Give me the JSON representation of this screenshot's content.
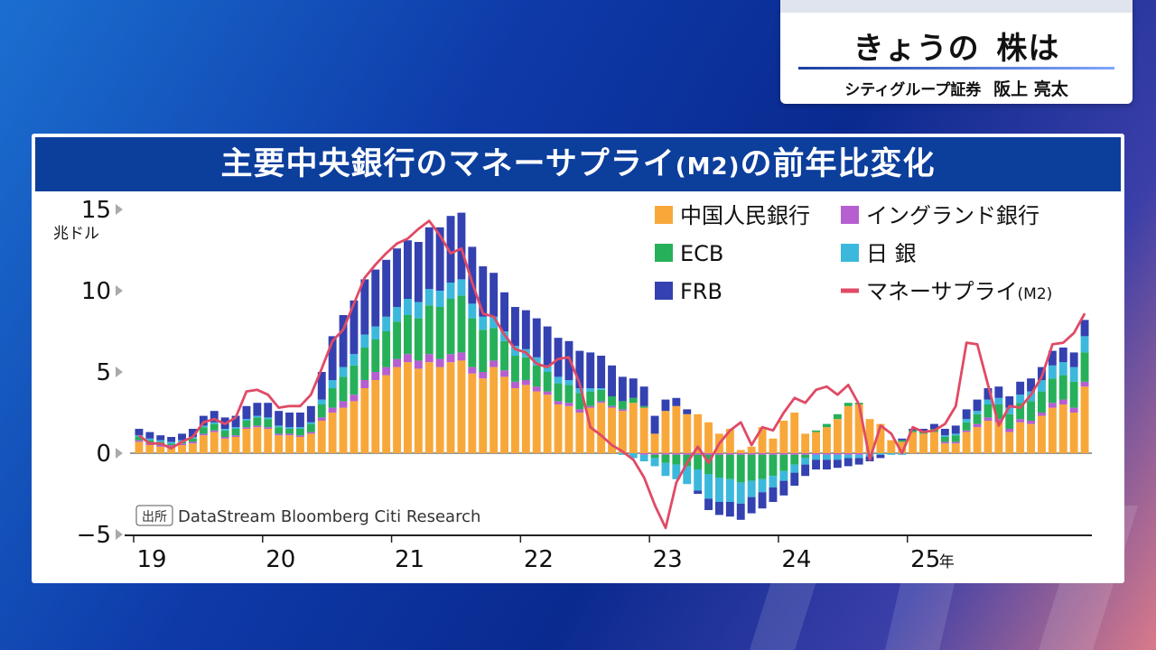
{
  "header": {
    "title_a": "きょうの",
    "title_b": "株は",
    "company": "シティグループ証券",
    "person": "阪上 亮太"
  },
  "chart_title": {
    "main": "主要中央銀行のマネーサプライ",
    "m2": "(M2)",
    "tail": "の前年比変化"
  },
  "colors": {
    "pboc": "#f8a83a",
    "boe": "#b65fd0",
    "ecb": "#26b05a",
    "boj": "#3cb8dc",
    "frb": "#3441b0",
    "m2": "#e04a66"
  },
  "chart_data": {
    "type": "bar",
    "stacked": true,
    "title": "主要中央銀行のマネーサプライ(M2)の前年比変化",
    "ylabel": "兆ドル",
    "ylim": [
      -5,
      15
    ],
    "yticks": [
      15,
      10,
      5,
      0,
      -5
    ],
    "x_start": 2019.0,
    "x_step": 0.0833333,
    "xticks": [
      {
        "label": "19",
        "x": 2019
      },
      {
        "label": "20",
        "x": 2020
      },
      {
        "label": "21",
        "x": 2021
      },
      {
        "label": "22",
        "x": 2022
      },
      {
        "label": "23",
        "x": 2023
      },
      {
        "label": "24",
        "x": 2024
      },
      {
        "label": "25",
        "x": 2025
      }
    ],
    "x_unit": "年",
    "source_label": "出所",
    "source": "DataStream Bloomberg Citi Research",
    "series": [
      {
        "name": "中国人民銀行",
        "key": "pboc",
        "values": [
          0.7,
          0.5,
          0.4,
          0.4,
          0.5,
          0.6,
          1.1,
          1.3,
          0.9,
          1.0,
          1.5,
          1.6,
          1.5,
          1.1,
          1.1,
          1.0,
          1.2,
          2.0,
          2.5,
          2.8,
          3.2,
          4.0,
          4.5,
          4.8,
          5.3,
          5.6,
          5.2,
          5.6,
          5.3,
          5.6,
          5.7,
          4.9,
          4.6,
          5.3,
          4.7,
          4.0,
          4.2,
          3.8,
          3.6,
          3.0,
          2.9,
          2.5,
          2.8,
          3.1,
          2.8,
          2.6,
          3.1,
          2.8,
          1.2,
          2.6,
          2.9,
          2.4,
          2.4,
          1.9,
          1.2,
          1.5,
          0.2,
          0.4,
          1.6,
          0.9,
          2.0,
          2.5,
          1.2,
          1.3,
          1.6,
          2.1,
          2.9,
          3.0,
          2.1,
          1.8,
          0.8,
          0.7,
          1.3,
          1.2,
          1.3,
          0.6,
          0.6,
          1.3,
          1.6,
          2.0,
          1.9,
          1.3,
          1.9,
          1.8,
          2.3,
          2.8,
          3.0,
          2.5,
          4.1
        ]
      },
      {
        "name": "イングランド銀行",
        "key": "boe",
        "values": [
          0.1,
          0.1,
          0.1,
          0.1,
          0.1,
          0.1,
          0.1,
          0.1,
          0.1,
          0.1,
          0.1,
          0.1,
          0.1,
          0.1,
          0.1,
          0.1,
          0.1,
          0.2,
          0.3,
          0.4,
          0.4,
          0.5,
          0.5,
          0.5,
          0.5,
          0.5,
          0.5,
          0.5,
          0.5,
          0.5,
          0.5,
          0.4,
          0.4,
          0.4,
          0.4,
          0.4,
          0.3,
          0.3,
          0.2,
          0.2,
          0.2,
          0.2,
          0.1,
          0.1,
          0.1,
          0.1,
          0.0,
          -0.1,
          -0.1,
          -0.1,
          -0.1,
          -0.1,
          -0.1,
          -0.1,
          -0.1,
          -0.1,
          -0.1,
          -0.1,
          -0.1,
          -0.1,
          -0.1,
          -0.1,
          -0.1,
          -0.1,
          -0.1,
          -0.1,
          -0.1,
          -0.1,
          0.0,
          0.0,
          0.0,
          0.0,
          0.0,
          0.0,
          0.0,
          0.1,
          0.1,
          0.1,
          0.2,
          0.2,
          0.2,
          0.2,
          0.2,
          0.2,
          0.2,
          0.3,
          0.3,
          0.3,
          0.3
        ]
      },
      {
        "name": "ECB",
        "key": "ecb",
        "values": [
          0.2,
          0.2,
          0.2,
          0.1,
          0.1,
          0.2,
          0.4,
          0.4,
          0.4,
          0.4,
          0.4,
          0.5,
          0.5,
          0.4,
          0.3,
          0.4,
          0.5,
          0.8,
          1.2,
          1.5,
          1.8,
          2.0,
          2.0,
          2.2,
          2.3,
          2.4,
          2.6,
          3.0,
          3.2,
          3.4,
          3.5,
          3.0,
          2.6,
          2.0,
          1.8,
          1.6,
          1.4,
          1.3,
          1.2,
          1.1,
          1.1,
          1.0,
          0.9,
          0.7,
          0.6,
          0.5,
          0.3,
          0.1,
          -0.2,
          -0.5,
          -0.6,
          -0.7,
          -0.9,
          -1.2,
          -1.4,
          -1.5,
          -1.7,
          -1.6,
          -1.5,
          -1.3,
          -1.0,
          -0.6,
          -0.2,
          0.1,
          0.2,
          0.3,
          0.2,
          0.1,
          0.0,
          0.0,
          0.0,
          0.1,
          0.1,
          0.1,
          0.2,
          0.3,
          0.4,
          0.5,
          0.6,
          0.8,
          0.9,
          0.9,
          1.0,
          1.2,
          1.3,
          1.5,
          1.5,
          1.6,
          1.8
        ]
      },
      {
        "name": "日 銀",
        "key": "boj",
        "values": [
          0.1,
          0.1,
          0.1,
          0.1,
          0.1,
          0.1,
          0.1,
          0.1,
          0.1,
          0.1,
          0.1,
          0.1,
          0.1,
          0.1,
          0.1,
          0.1,
          0.1,
          0.3,
          0.5,
          0.6,
          0.7,
          0.8,
          0.8,
          0.9,
          0.9,
          1.0,
          1.0,
          1.0,
          1.0,
          1.0,
          1.0,
          0.9,
          0.8,
          0.7,
          0.6,
          0.6,
          0.5,
          0.5,
          0.4,
          0.4,
          0.3,
          0.3,
          0.2,
          0.1,
          0.0,
          -0.1,
          -0.3,
          -0.4,
          -0.5,
          -0.8,
          -0.9,
          -1.1,
          -1.3,
          -1.5,
          -1.5,
          -1.4,
          -1.3,
          -1.0,
          -0.8,
          -0.7,
          -0.6,
          -0.5,
          -0.4,
          -0.3,
          -0.3,
          -0.3,
          -0.2,
          -0.2,
          -0.2,
          -0.1,
          -0.1,
          -0.1,
          0.0,
          0.0,
          0.0,
          0.1,
          0.1,
          0.2,
          0.2,
          0.3,
          0.4,
          0.4,
          0.5,
          0.6,
          0.7,
          0.8,
          0.8,
          0.9,
          1.0
        ]
      },
      {
        "name": "FRB",
        "key": "frb",
        "values": [
          0.4,
          0.4,
          0.3,
          0.3,
          0.4,
          0.5,
          0.6,
          0.7,
          0.7,
          0.7,
          0.8,
          0.8,
          0.9,
          0.9,
          0.9,
          0.9,
          1.0,
          1.7,
          2.7,
          3.2,
          3.3,
          3.4,
          3.5,
          3.5,
          3.6,
          3.6,
          3.7,
          3.8,
          3.9,
          4.1,
          4.1,
          3.5,
          3.1,
          2.7,
          2.4,
          2.4,
          2.4,
          2.4,
          2.4,
          2.4,
          2.4,
          2.3,
          2.2,
          2.0,
          1.9,
          1.5,
          1.2,
          1.2,
          1.1,
          0.7,
          0.5,
          0.3,
          -0.2,
          -0.7,
          -0.8,
          -0.9,
          -1.0,
          -1.0,
          -1.0,
          -0.9,
          -0.9,
          -0.8,
          -0.7,
          -0.6,
          -0.6,
          -0.5,
          -0.5,
          -0.4,
          -0.3,
          -0.2,
          0.0,
          0.1,
          0.1,
          0.2,
          0.3,
          0.4,
          0.5,
          0.6,
          0.7,
          0.7,
          0.7,
          0.7,
          0.8,
          0.8,
          0.8,
          0.9,
          0.9,
          0.9,
          1.0
        ]
      }
    ],
    "line": {
      "name": "マネーサプライ(M2)",
      "key": "m2",
      "values": [
        1.1,
        0.6,
        0.6,
        0.3,
        0.7,
        1.0,
        1.9,
        2.1,
        1.8,
        2.2,
        3.8,
        3.9,
        3.6,
        2.8,
        2.9,
        2.9,
        3.6,
        5.2,
        6.9,
        7.6,
        9.2,
        10.8,
        11.6,
        12.3,
        12.9,
        13.2,
        13.8,
        14.3,
        13.4,
        12.3,
        12.6,
        10.5,
        8.6,
        8.4,
        7.3,
        6.4,
        6.2,
        5.5,
        5.3,
        5.8,
        5.9,
        4.3,
        1.6,
        1.1,
        0.5,
        0.1,
        -0.4,
        -1.5,
        -3.2,
        -4.6,
        -1.8,
        -0.6,
        0.4,
        -0.6,
        0.6,
        1.4,
        1.9,
        0.5,
        1.6,
        1.4,
        2.5,
        3.4,
        3.1,
        3.9,
        4.1,
        3.6,
        4.2,
        3.0,
        -0.4,
        1.7,
        1.2,
        0.0,
        1.6,
        1.3,
        1.4,
        1.8,
        2.9,
        6.8,
        6.7,
        4.2,
        1.7,
        2.9,
        2.8,
        3.6,
        4.7,
        6.7,
        6.8,
        7.4,
        8.6
      ]
    },
    "legend": [
      {
        "label": "中国人民銀行",
        "key": "pboc",
        "kind": "box"
      },
      {
        "label": "イングランド銀行",
        "key": "boe",
        "kind": "box"
      },
      {
        "label": "ECB",
        "key": "ecb",
        "kind": "box"
      },
      {
        "label": "日 銀",
        "key": "boj",
        "kind": "box"
      },
      {
        "label": "FRB",
        "key": "frb",
        "kind": "box"
      },
      {
        "label": "マネーサプライ",
        "label_suffix": "(M2)",
        "key": "m2",
        "kind": "line"
      }
    ]
  }
}
